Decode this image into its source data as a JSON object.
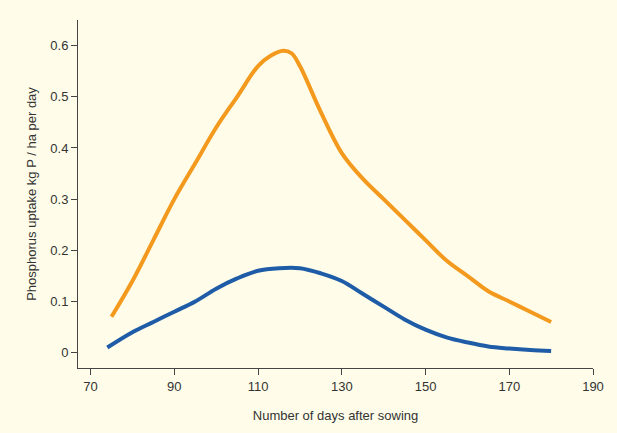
{
  "chart_data": {
    "type": "line",
    "x_label": "Number of days after sowing",
    "y_label": "Phosphorus uptake kg P / ha per day",
    "series": [
      {
        "color": "#f39a1e",
        "x": [
          75,
          80,
          85,
          90,
          95,
          100,
          105,
          110,
          113,
          116,
          118,
          120,
          125,
          130,
          135,
          140,
          145,
          150,
          155,
          160,
          165,
          170,
          175,
          180
        ],
        "values": [
          0.07,
          0.14,
          0.22,
          0.3,
          0.37,
          0.44,
          0.5,
          0.56,
          0.58,
          0.59,
          0.585,
          0.56,
          0.47,
          0.39,
          0.34,
          0.3,
          0.26,
          0.22,
          0.18,
          0.15,
          0.12,
          0.1,
          0.08,
          0.06
        ]
      },
      {
        "color": "#1f5ca8",
        "x": [
          74,
          80,
          85,
          90,
          95,
          100,
          105,
          110,
          115,
          120,
          125,
          130,
          135,
          140,
          145,
          150,
          155,
          160,
          165,
          170,
          175,
          180
        ],
        "values": [
          0.01,
          0.04,
          0.06,
          0.08,
          0.1,
          0.125,
          0.145,
          0.16,
          0.165,
          0.165,
          0.155,
          0.14,
          0.115,
          0.09,
          0.065,
          0.045,
          0.03,
          0.02,
          0.012,
          0.008,
          0.005,
          0.003
        ]
      }
    ],
    "xlim": [
      67,
      190
    ],
    "xticks": [
      70,
      90,
      110,
      130,
      150,
      170,
      190
    ],
    "ylim": [
      -0.03,
      0.65
    ],
    "yticks": [
      0,
      0.1,
      0.2,
      0.3,
      0.4,
      0.5,
      0.6
    ],
    "grid": false
  }
}
